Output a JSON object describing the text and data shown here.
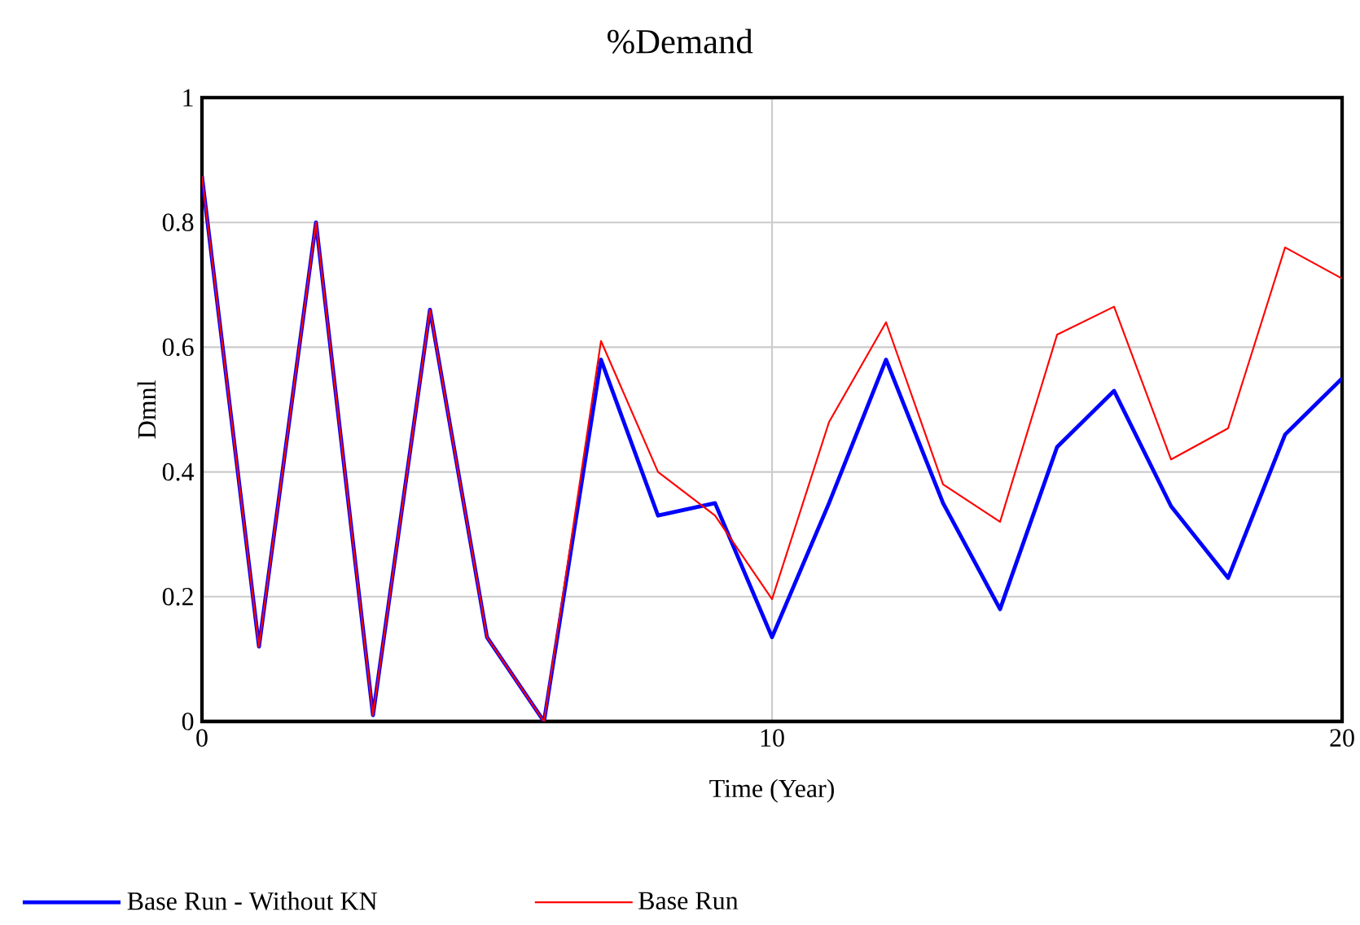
{
  "chart_data": {
    "type": "line",
    "title": "%Demand",
    "xlabel": "Time (Year)",
    "ylabel": "Dmnl",
    "x": [
      0,
      1,
      2,
      3,
      4,
      5,
      6,
      7,
      8,
      9,
      10,
      11,
      12,
      13,
      14,
      15,
      16,
      17,
      18,
      19,
      20
    ],
    "series": [
      {
        "name": "Base Run - Without KN",
        "color": "#0000ff",
        "values": [
          0.874,
          0.12,
          0.8,
          0.01,
          0.66,
          0.135,
          0,
          0.58,
          0.33,
          0.35,
          0.135,
          0.35,
          0.58,
          0.35,
          0.18,
          0.44,
          0.53,
          0.345,
          0.23,
          0.46,
          0.55
        ]
      },
      {
        "name": "Base Run",
        "color": "#ff0000",
        "values": [
          0.874,
          0.12,
          0.8,
          0.01,
          0.66,
          0.135,
          0,
          0.61,
          0.4,
          0.33,
          0.196,
          0.48,
          0.64,
          0.38,
          0.32,
          0.62,
          0.665,
          0.42,
          0.47,
          0.76,
          0.71
        ]
      }
    ],
    "xlim": [
      0,
      20
    ],
    "xticks": [
      0,
      10,
      20
    ],
    "ylim": [
      0,
      1
    ],
    "yticks": [
      0,
      0.2,
      0.4,
      0.6,
      0.8,
      1
    ],
    "grid": true,
    "legend": "bottom",
    "marker": "none",
    "line_style": "solid"
  }
}
